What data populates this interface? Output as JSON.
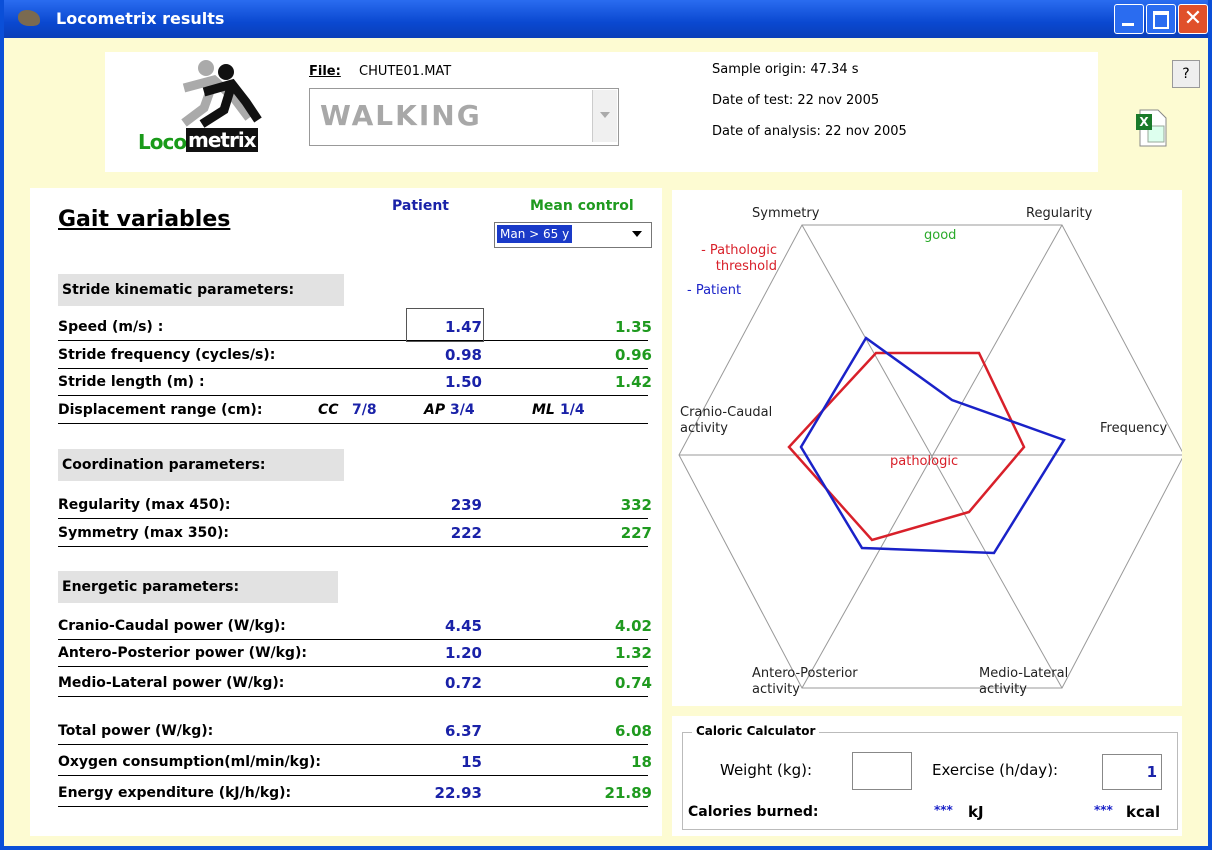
{
  "window": {
    "title": "Locometrix results",
    "help": "?"
  },
  "header": {
    "logo_a": "Loco",
    "logo_b": "metrix",
    "file_label": "File:",
    "file_name": "CHUTE01.MAT",
    "activity": "WALKING",
    "sample_origin": "Sample origin: 47.34 s",
    "date_test": "Date of test: 22 nov 2005",
    "date_analysis": "Date of analysis: 22 nov 2005"
  },
  "gait": {
    "title": "Gait variables",
    "patient_header": "Patient",
    "control_header": "Mean control",
    "control_group": "Man > 65 y",
    "sections": [
      {
        "title": "Stride kinematic parameters:",
        "rows": [
          {
            "label": "Speed  (m/s) :",
            "patient": "1.47",
            "control": "1.35"
          },
          {
            "label": "Stride frequency (cycles/s):",
            "patient": "0.98",
            "control": "0.96"
          },
          {
            "label": "Stride length (m) :",
            "patient": "1.50",
            "control": "1.42"
          }
        ],
        "displacement": {
          "label": "Displacement range (cm):",
          "cc_label": "CC",
          "cc": "7/8",
          "ap_label": "AP",
          "ap": "3/4",
          "ml_label": "ML",
          "ml": "1/4"
        }
      },
      {
        "title": "Coordination parameters:",
        "rows": [
          {
            "label": "Regularity (max 450):",
            "patient": "239",
            "control": "332"
          },
          {
            "label": "Symmetry (max 350):",
            "patient": "222",
            "control": "227"
          }
        ]
      },
      {
        "title": "Energetic parameters:",
        "rows": [
          {
            "label": "Cranio-Caudal power (W/kg):",
            "patient": "4.45",
            "control": "4.02"
          },
          {
            "label": "Antero-Posterior power (W/kg):",
            "patient": "1.20",
            "control": "1.32"
          },
          {
            "label": "Medio-Lateral power (W/kg):",
            "patient": "0.72",
            "control": "0.74"
          }
        ]
      }
    ],
    "totals": [
      {
        "label": "Total power (W/kg):",
        "patient": "6.37",
        "control": "6.08"
      },
      {
        "label": "Oxygen consumption(ml/min/kg):",
        "patient": "15",
        "control": "18"
      },
      {
        "label": "Energy expenditure (kJ/h/kg):",
        "patient": "22.93",
        "control": "21.89"
      }
    ]
  },
  "radar": {
    "symmetry": "Symmetry",
    "regularity": "Regularity",
    "frequency": "Frequency",
    "medio_lateral": "Medio-Lateral activity",
    "antero_posterior": "Antero-Posterior activity",
    "cranio_caudal": "Cranio-Caudal activity",
    "good": "good",
    "pathologic": "pathologic",
    "legend_threshold": "- Pathologic threshold",
    "legend_patient": "- Patient"
  },
  "caloric": {
    "title": "Caloric Calculator",
    "weight_label": "Weight (kg):",
    "exercise_label": "Exercise (h/day):",
    "exercise": "1",
    "burned_label": "Calories burned:",
    "kj_value": "***",
    "kj_unit": "kJ",
    "kcal_value": "***",
    "kcal_unit": "kcal"
  }
}
